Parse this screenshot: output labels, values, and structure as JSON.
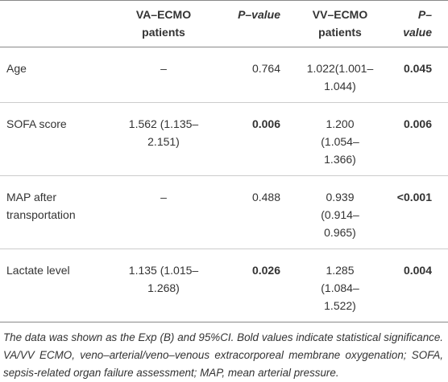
{
  "table": {
    "header": [
      "VA–ECMO patients",
      "P–value",
      "VV–ECMO patients",
      "P–value"
    ],
    "rows": [
      [
        "Age",
        "–",
        "0.764",
        "1.022(1.001–1.044)",
        "0.045"
      ],
      [
        "SOFA score",
        "1.562 (1.135–2.151)",
        "0.006",
        "1.200 (1.054–1.366)",
        "0.006"
      ],
      [
        "MAP after transportation",
        "–",
        "0.488",
        "0.939 (0.914–0.965)",
        "<0.001"
      ],
      [
        "Lactate level",
        "1.135 (1.015–1.268)",
        "0.026",
        "1.285 (1.084–1.522)",
        "0.004"
      ]
    ],
    "footnote": "The data was shown as the Exp (B) and 95%CI. Bold values indicate statistical significance. VA/VV ECMO, veno–arterial/veno–venous extracorporeal membrane oxygenation; SOFA, sepsis-related organ failure assessment; MAP, mean arterial pressure."
  }
}
